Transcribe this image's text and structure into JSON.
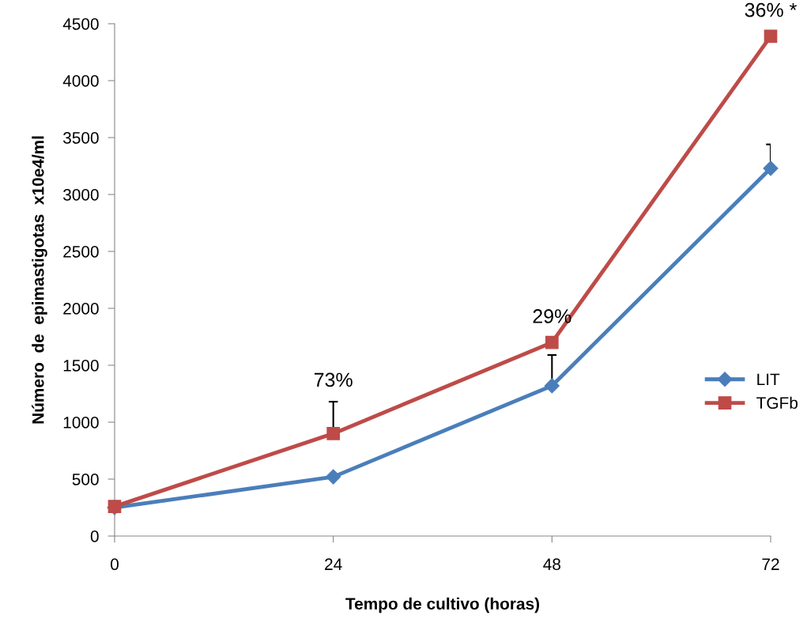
{
  "chart_data": {
    "type": "line",
    "xlabel": "Tempo de cultivo (horas)",
    "ylabel": "Número  de  epimastigotas  x10e4/ml",
    "x": [
      0,
      24,
      48,
      72
    ],
    "xlim": [
      0,
      72
    ],
    "xticks": [
      0,
      24,
      48,
      72
    ],
    "ylim": [
      0,
      4500
    ],
    "yticks": [
      0,
      500,
      1000,
      1500,
      2000,
      2500,
      3000,
      3500,
      4000,
      4500
    ],
    "series": [
      {
        "name": "LIT",
        "color": "#4a7ebb",
        "marker": "diamond",
        "values": [
          250,
          520,
          1320,
          3230
        ],
        "errors": [
          null,
          null,
          [
            1320,
            1590
          ],
          [
            3230,
            3440
          ]
        ]
      },
      {
        "name": "TGFb",
        "color": "#be4b48",
        "marker": "square",
        "values": [
          260,
          900,
          1700,
          4390
        ],
        "errors": [
          null,
          [
            900,
            1180
          ],
          null,
          null
        ]
      }
    ],
    "annotations": [
      {
        "text": "73%",
        "x": 24,
        "y": 900
      },
      {
        "text": "29%",
        "x": 48,
        "y": 1700
      },
      {
        "text": "36% *",
        "x": 72,
        "y": 4390
      }
    ],
    "legend": "right",
    "grid": false,
    "line_style": "solid"
  }
}
